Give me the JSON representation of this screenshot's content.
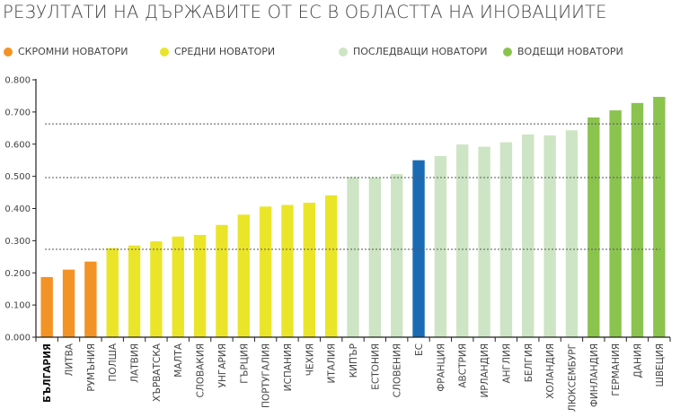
{
  "chart_data": {
    "type": "bar",
    "title": "РЕЗУЛТАТИ НА ДЪРЖАВИТЕ ОТ ЕС В ОБЛАСТТА НА ИНОВАЦИИТЕ",
    "xlabel": "",
    "ylabel": "",
    "ylim": [
      0,
      0.8
    ],
    "yticks": [
      "0.000",
      "0.100",
      "0.200",
      "0.300",
      "0.400",
      "0.500",
      "0.600",
      "0.700",
      "0.800"
    ],
    "legend": [
      {
        "label": "СКРОМНИ НОВАТОРИ",
        "color": "#f39325"
      },
      {
        "label": "СРЕДНИ НОВАТОРИ",
        "color": "#ebe52a"
      },
      {
        "label": "ПОСЛЕДВАЩИ НОВАТОРИ",
        "color": "#cde5c4"
      },
      {
        "label": "ВОДЕЩИ НОВАТОРИ",
        "color": "#8bc34f"
      }
    ],
    "legend_position": "top",
    "eu_color": "#1a6bb3",
    "threshold_lines": [
      0.273,
      0.496,
      0.663
    ],
    "categories": [
      "БЪЛГАРИЯ",
      "ЛИТВА",
      "РУМЪНИЯ",
      "ПОЛША",
      "ЛАТВИЯ",
      "ХЪРВАТСКА",
      "МАЛТА",
      "СЛОВАКИЯ",
      "УНГАРИЯ",
      "ГЪРЦИЯ",
      "ПОРТУГАЛИЯ",
      "ИСПАНИЯ",
      "ЧЕХИЯ",
      "ИТАЛИЯ",
      "КИПЪР",
      "ЕСТОНИЯ",
      "СЛОВЕНИЯ",
      "ЕС",
      "ФРАНЦИЯ",
      "АВСТРИЯ",
      "ИРЛАНДИЯ",
      "АНГЛИЯ",
      "БЕЛГИЯ",
      "ХОЛАНДИЯ",
      "ЛЮКСЕМБУРГ",
      "ФИНЛАНДИЯ",
      "ГЕРМАНИЯ",
      "ДАНИЯ",
      "ШВЕЦИЯ"
    ],
    "values": [
      0.187,
      0.21,
      0.235,
      0.277,
      0.285,
      0.298,
      0.313,
      0.318,
      0.349,
      0.381,
      0.406,
      0.411,
      0.418,
      0.441,
      0.498,
      0.496,
      0.507,
      0.55,
      0.563,
      0.599,
      0.592,
      0.606,
      0.63,
      0.627,
      0.643,
      0.683,
      0.705,
      0.728,
      0.747
    ],
    "groups": [
      0,
      0,
      0,
      1,
      1,
      1,
      1,
      1,
      1,
      1,
      1,
      1,
      1,
      1,
      2,
      2,
      2,
      "eu",
      2,
      2,
      2,
      2,
      2,
      2,
      2,
      3,
      3,
      3,
      3
    ],
    "bold_category": "БЪЛГАРИЯ"
  }
}
